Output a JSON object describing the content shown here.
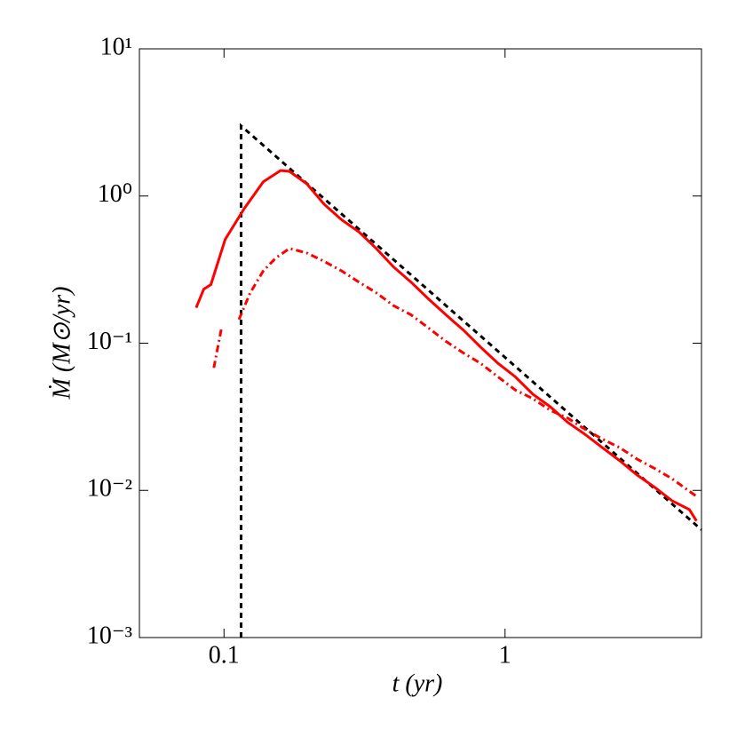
{
  "chart_data": {
    "type": "line",
    "xlabel": "t   (yr)",
    "ylabel": "Ṁ   (M⊙/yr)",
    "xscale": "log",
    "yscale": "log",
    "xlim": [
      0.05,
      5
    ],
    "ylim": [
      0.001,
      10
    ],
    "xticks": [
      0.1,
      1
    ],
    "yticks": [
      {
        "value": 0.001,
        "label": "10⁻³"
      },
      {
        "value": 0.01,
        "label": "10⁻²"
      },
      {
        "value": 0.1,
        "label": "10⁻¹"
      },
      {
        "value": 1,
        "label": "10⁰"
      },
      {
        "value": 10,
        "label": "10¹"
      }
    ],
    "series": [
      {
        "color": "#000000",
        "dash": "dashed",
        "x": [
          0.115,
          0.115,
          5
        ],
        "values": [
          0.001,
          3,
          0.0054
        ]
      },
      {
        "color": "#ff0000",
        "dash": "solid",
        "x": [
          0.0796,
          0.0847,
          0.0898,
          0.101,
          0.118,
          0.138,
          0.159,
          0.171,
          0.197,
          0.227,
          0.262,
          0.302,
          0.348,
          0.401,
          0.463,
          0.534,
          0.616,
          0.71,
          0.819,
          0.944,
          1.089,
          1.256,
          1.448,
          1.67,
          1.926,
          2.221,
          2.561,
          2.953,
          3.405,
          3.926,
          4.53,
          4.8
        ],
        "values": [
          0.174,
          0.233,
          0.25,
          0.507,
          0.82,
          1.25,
          1.49,
          1.47,
          1.21,
          0.88,
          0.69,
          0.57,
          0.44,
          0.33,
          0.26,
          0.2,
          0.156,
          0.123,
          0.094,
          0.073,
          0.059,
          0.045,
          0.037,
          0.029,
          0.024,
          0.0195,
          0.0159,
          0.0127,
          0.0105,
          0.0085,
          0.0074,
          0.0062
        ]
      },
      {
        "color": "#ff0000",
        "dash": "dashdot",
        "x": [
          0.092,
          0.098,
          0.105,
          0.113,
          0.124,
          0.138,
          0.153,
          0.171,
          0.197,
          0.227,
          0.262,
          0.302,
          0.348,
          0.401,
          0.463,
          0.534,
          0.616,
          0.71,
          0.819,
          0.944,
          1.089,
          1.256,
          1.448,
          1.67,
          1.926,
          2.221,
          2.561,
          2.953,
          3.405,
          3.926,
          4.8
        ],
        "values": [
          0.068,
          0.127,
          null,
          0.145,
          0.22,
          0.31,
          0.38,
          0.44,
          0.41,
          0.36,
          0.31,
          0.26,
          0.22,
          0.18,
          0.156,
          0.127,
          0.103,
          0.086,
          0.073,
          0.059,
          0.048,
          0.042,
          0.035,
          0.031,
          0.026,
          0.0223,
          0.0195,
          0.0163,
          0.0141,
          0.012,
          0.0091
        ]
      }
    ]
  }
}
